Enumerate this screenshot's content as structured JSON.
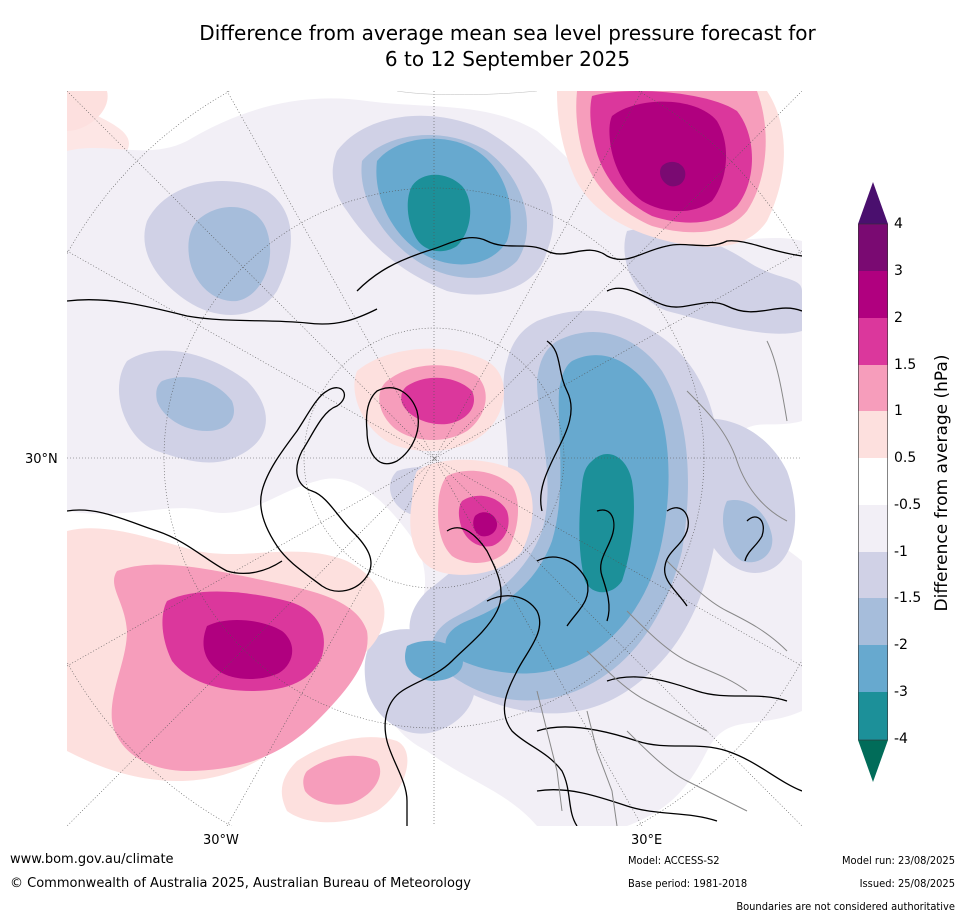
{
  "title_line1": "Difference from average mean sea level pressure forecast for",
  "title_line2": "6 to 12 September 2025",
  "axis_labels": {
    "lat_left": "30°N",
    "lon_bottom_left": "30°W",
    "lon_bottom_right": "30°E"
  },
  "colorbar": {
    "label": "Difference from average (hPa)",
    "ticks": [
      "4",
      "3",
      "2",
      "1.5",
      "1",
      "0.5",
      "-0.5",
      "-1",
      "-1.5",
      "-2",
      "-3",
      "-4"
    ],
    "colors": {
      "above_4": "#4a0f6e",
      "3_to_4": "#7a0a72",
      "2_to_3": "#b0007f",
      "1.5_to_2": "#db379c",
      "1_to_1.5": "#f69dbb",
      "0.5_to_1": "#fde0de",
      "neutral": "#ffffff",
      "-1_to_-0.5": "#f2eff6",
      "-1.5_to_-1": "#d0d1e6",
      "-2_to_-1.5": "#a6bddb",
      "-3_to_-2": "#67a9cf",
      "-4_to_-3": "#1c9099",
      "below_-4": "#016c59"
    }
  },
  "footer": {
    "website": "www.bom.gov.au/climate",
    "copyright": "© Commonwealth of Australia 2025, Australian Bureau of Meteorology",
    "model": "Model: ACCESS-S2",
    "base_period": "Base period: 1981-2018",
    "model_run": "Model run: 23/08/2025",
    "issued": "Issued: 25/08/2025",
    "disclaimer": "Boundaries are not considered authoritative"
  }
}
